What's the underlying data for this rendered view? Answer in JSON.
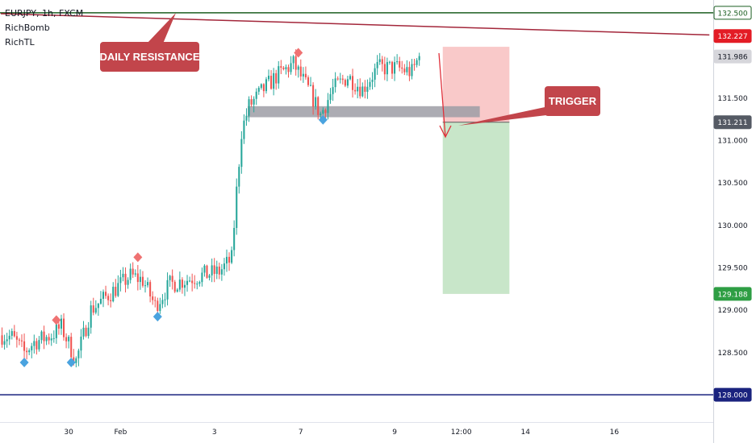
{
  "legend": {
    "symbol": "EURJPY, 1h, FXCM",
    "indicators": [
      "RichBomb",
      "RichTL"
    ]
  },
  "annotations": {
    "daily_resistance": "DAILY RESISTANCE",
    "trigger": "TRIGGER"
  },
  "colors": {
    "up": "#26a69a",
    "down": "#ef5350",
    "resistance_line": "#a3263a",
    "level_green": "#1b5e20",
    "level_navy": "#1a237e",
    "callout": "#c2454b",
    "stop_zone": "#f9c9c9",
    "target_zone": "#c8e6c9",
    "zone_gray": "#9e9ea6",
    "bearish_marker": "#ef7272",
    "bullish_marker": "#4aa3df"
  },
  "price_labels": [
    {
      "id": "level-132500",
      "text": "132.500",
      "value": 132.5,
      "bg": "#ffffff",
      "fg": "#1b5e20",
      "border": "#1b5e20"
    },
    {
      "id": "resistance-132227",
      "text": "132.227",
      "value": 132.227,
      "bg": "#e31c25",
      "fg": "#ffffff",
      "border": "#e31c25"
    },
    {
      "id": "last-131986",
      "text": "131.986",
      "value": 131.986,
      "bg": "#d6d6db",
      "fg": "#131722",
      "border": "#d6d6db"
    },
    {
      "id": "entry-131211",
      "text": "131.211",
      "value": 131.211,
      "bg": "#555a64",
      "fg": "#ffffff",
      "border": "#555a64"
    },
    {
      "id": "target-129188",
      "text": "129.188",
      "value": 129.188,
      "bg": "#2e9e44",
      "fg": "#ffffff",
      "border": "#2e9e44"
    },
    {
      "id": "level-128000",
      "text": "128.000",
      "value": 128.0,
      "bg": "#1a237e",
      "fg": "#ffffff",
      "border": "#1a237e"
    }
  ],
  "chart_data": {
    "type": "candlestick",
    "symbol": "EURJPY",
    "timeframe": "1h",
    "ylim": [
      127.9,
      132.6
    ],
    "yticks": [
      "132.000",
      "131.500",
      "131.000",
      "130.500",
      "130.000",
      "129.500",
      "129.000",
      "128.500"
    ],
    "ytick_values": [
      132.0,
      131.5,
      131.0,
      130.5,
      130.0,
      129.5,
      129.0,
      128.5
    ],
    "xticks": [
      "30",
      "Feb",
      "3",
      "7",
      "9",
      "12:00",
      "14",
      "16"
    ],
    "xtick_bar_index": [
      27,
      48,
      86,
      121,
      159,
      186,
      212,
      248
    ],
    "bar_count": 170,
    "future_bars": 118,
    "anchors": [
      {
        "bar": 0,
        "price": 128.7
      },
      {
        "bar": 4,
        "price": 128.68
      },
      {
        "bar": 9,
        "price": 128.5
      },
      {
        "bar": 13,
        "price": 128.62
      },
      {
        "bar": 20,
        "price": 128.7
      },
      {
        "bar": 24,
        "price": 128.8
      },
      {
        "bar": 30,
        "price": 128.4
      },
      {
        "bar": 36,
        "price": 129.0
      },
      {
        "bar": 44,
        "price": 129.2
      },
      {
        "bar": 52,
        "price": 129.4
      },
      {
        "bar": 57,
        "price": 129.35
      },
      {
        "bar": 62,
        "price": 129.05
      },
      {
        "bar": 68,
        "price": 129.3
      },
      {
        "bar": 80,
        "price": 129.4
      },
      {
        "bar": 88,
        "price": 129.45
      },
      {
        "bar": 93,
        "price": 129.6
      },
      {
        "bar": 95,
        "price": 130.4
      },
      {
        "bar": 97,
        "price": 131.1
      },
      {
        "bar": 100,
        "price": 131.4
      },
      {
        "bar": 106,
        "price": 131.6
      },
      {
        "bar": 111,
        "price": 131.75
      },
      {
        "bar": 118,
        "price": 131.9
      },
      {
        "bar": 125,
        "price": 131.55
      },
      {
        "bar": 129,
        "price": 131.3
      },
      {
        "bar": 134,
        "price": 131.6
      },
      {
        "bar": 140,
        "price": 131.75
      },
      {
        "bar": 146,
        "price": 131.6
      },
      {
        "bar": 152,
        "price": 131.85
      },
      {
        "bar": 160,
        "price": 131.85
      },
      {
        "bar": 166,
        "price": 131.8
      },
      {
        "bar": 169,
        "price": 131.99
      }
    ],
    "resistance_line": {
      "start": {
        "bar": 0,
        "price": 132.49
      },
      "end": {
        "bar": 287,
        "price": 132.24
      }
    },
    "horizontal_levels": [
      132.5,
      128.0
    ],
    "support_zone": {
      "from_bar": 100,
      "to_bar": 194,
      "top": 131.4,
      "bottom": 131.27
    },
    "position": {
      "type": "short",
      "from_bar": 179,
      "to_bar": 206,
      "entry": 131.211,
      "stop": 132.1,
      "target": 129.188
    },
    "markers": [
      {
        "bar": 9,
        "price": 128.38,
        "kind": "bullish"
      },
      {
        "bar": 22,
        "price": 128.88,
        "kind": "bearish"
      },
      {
        "bar": 28,
        "price": 128.38,
        "kind": "bullish"
      },
      {
        "bar": 55,
        "price": 129.62,
        "kind": "bearish"
      },
      {
        "bar": 63,
        "price": 128.92,
        "kind": "bullish"
      },
      {
        "bar": 120,
        "price": 132.03,
        "kind": "bearish"
      },
      {
        "bar": 130,
        "price": 131.24,
        "kind": "bullish"
      }
    ]
  }
}
